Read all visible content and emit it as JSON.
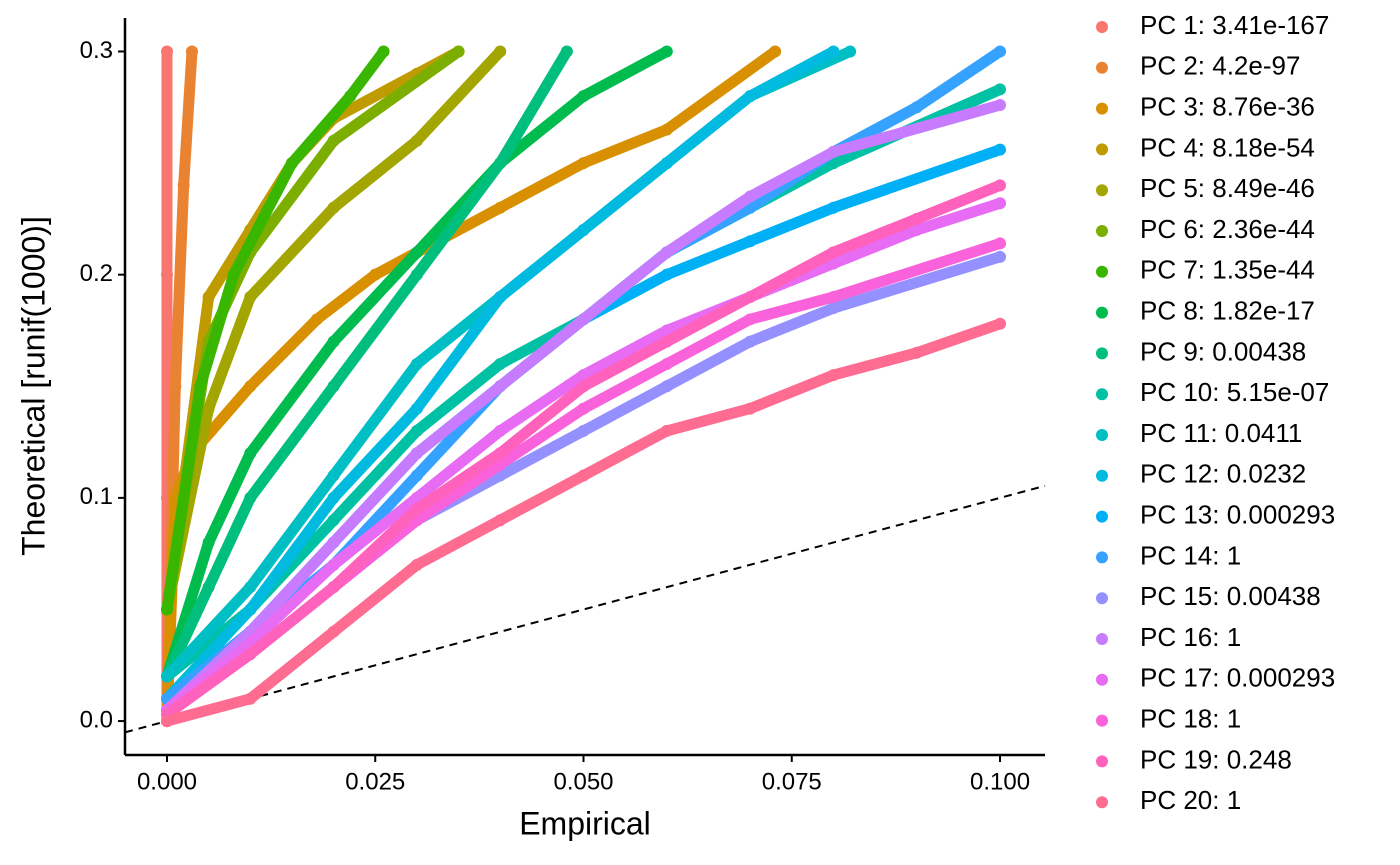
{
  "chart_data": {
    "type": "scatter",
    "xlabel": "Empirical",
    "ylabel": "Theoretical [runif(1000)]",
    "xlim": [
      -0.00504,
      0.1054
    ],
    "ylim": [
      -0.0152,
      0.315
    ],
    "xticks": [
      {
        "value": 0,
        "label": "0.000"
      },
      {
        "value": 0.025,
        "label": "0.025"
      },
      {
        "value": 0.05,
        "label": "0.050"
      },
      {
        "value": 0.075,
        "label": "0.075"
      },
      {
        "value": 0.1,
        "label": "0.100"
      }
    ],
    "yticks": [
      {
        "value": 0,
        "label": "0.0"
      },
      0.1,
      0.2,
      0.3
    ],
    "legend": "right",
    "series": [
      {
        "name": "PC 1: 3.41e-167",
        "color": "#F8766D",
        "x": [
          0,
          0,
          0,
          0
        ],
        "values": [
          0,
          0.1,
          0.2,
          0.3
        ]
      },
      {
        "name": "PC 2: 4.2e-97",
        "color": "#EA8331",
        "x": [
          0,
          0.001,
          0.002,
          0.003
        ],
        "values": [
          0,
          0.15,
          0.24,
          0.3
        ]
      },
      {
        "name": "PC 3: 8.76e-36",
        "color": "#D89000",
        "x": [
          0,
          0.001,
          0.003,
          0.01,
          0.018,
          0.025,
          0.04,
          0.05,
          0.06,
          0.073
        ],
        "values": [
          0,
          0.1,
          0.12,
          0.15,
          0.18,
          0.2,
          0.23,
          0.25,
          0.265,
          0.3
        ]
      },
      {
        "name": "PC 4: 8.18e-54",
        "color": "#C09B00",
        "x": [
          0,
          0.005,
          0.01,
          0.015,
          0.02,
          0.03,
          0.035
        ],
        "values": [
          0.05,
          0.19,
          0.22,
          0.25,
          0.27,
          0.29,
          0.3
        ]
      },
      {
        "name": "PC 5: 8.49e-46",
        "color": "#A3A500",
        "x": [
          0,
          0.005,
          0.01,
          0.02,
          0.03,
          0.04
        ],
        "values": [
          0.05,
          0.14,
          0.19,
          0.23,
          0.26,
          0.3
        ]
      },
      {
        "name": "PC 6: 2.36e-44",
        "color": "#7CAE00",
        "x": [
          0,
          0.005,
          0.01,
          0.02,
          0.035
        ],
        "values": [
          0.05,
          0.17,
          0.21,
          0.26,
          0.3
        ]
      },
      {
        "name": "PC 7: 1.35e-44",
        "color": "#39B600",
        "x": [
          0,
          0.004,
          0.008,
          0.015,
          0.022,
          0.026
        ],
        "values": [
          0.05,
          0.15,
          0.2,
          0.25,
          0.28,
          0.3
        ]
      },
      {
        "name": "PC 8: 1.82e-17",
        "color": "#00BB4E",
        "x": [
          0,
          0.005,
          0.01,
          0.02,
          0.03,
          0.04,
          0.05,
          0.06
        ],
        "values": [
          0.02,
          0.08,
          0.12,
          0.17,
          0.21,
          0.25,
          0.28,
          0.3
        ]
      },
      {
        "name": "PC 9: 0.00438",
        "color": "#00BF7D",
        "x": [
          0,
          0.005,
          0.01,
          0.02,
          0.03,
          0.04,
          0.048
        ],
        "values": [
          0.02,
          0.06,
          0.1,
          0.15,
          0.2,
          0.25,
          0.3
        ]
      },
      {
        "name": "PC 10: 5.15e-07",
        "color": "#00C1A3",
        "x": [
          0,
          0.01,
          0.02,
          0.03,
          0.04,
          0.05,
          0.06,
          0.07,
          0.08,
          0.1
        ],
        "values": [
          0.02,
          0.05,
          0.09,
          0.13,
          0.16,
          0.18,
          0.21,
          0.23,
          0.25,
          0.283
        ]
      },
      {
        "name": "PC 11: 0.0411",
        "color": "#00BFC4",
        "x": [
          0,
          0.01,
          0.02,
          0.03,
          0.04,
          0.05,
          0.06,
          0.07,
          0.082
        ],
        "values": [
          0.02,
          0.06,
          0.11,
          0.16,
          0.19,
          0.22,
          0.25,
          0.28,
          0.3
        ]
      },
      {
        "name": "PC 12: 0.0232",
        "color": "#00BAE0",
        "x": [
          0,
          0.01,
          0.02,
          0.03,
          0.04,
          0.05,
          0.06,
          0.07,
          0.08
        ],
        "values": [
          0.01,
          0.05,
          0.1,
          0.14,
          0.19,
          0.22,
          0.25,
          0.28,
          0.3
        ]
      },
      {
        "name": "PC 13: 0.000293",
        "color": "#00B0F6",
        "x": [
          0,
          0.01,
          0.02,
          0.03,
          0.04,
          0.05,
          0.06,
          0.07,
          0.08,
          0.1
        ],
        "values": [
          0.01,
          0.04,
          0.08,
          0.12,
          0.15,
          0.18,
          0.2,
          0.215,
          0.23,
          0.256
        ]
      },
      {
        "name": "PC 14: 1",
        "color": "#35A2FF",
        "x": [
          0,
          0.01,
          0.02,
          0.03,
          0.04,
          0.05,
          0.06,
          0.07,
          0.08,
          0.09,
          0.1
        ],
        "values": [
          0.01,
          0.04,
          0.07,
          0.11,
          0.15,
          0.18,
          0.21,
          0.23,
          0.255,
          0.275,
          0.3
        ]
      },
      {
        "name": "PC 15: 0.00438",
        "color": "#9590FF",
        "x": [
          0,
          0.01,
          0.02,
          0.03,
          0.04,
          0.05,
          0.06,
          0.07,
          0.08,
          0.1
        ],
        "values": [
          0.005,
          0.03,
          0.06,
          0.09,
          0.11,
          0.13,
          0.15,
          0.17,
          0.185,
          0.208
        ]
      },
      {
        "name": "PC 16: 1",
        "color": "#C77CFF",
        "x": [
          0,
          0.01,
          0.02,
          0.03,
          0.04,
          0.05,
          0.06,
          0.07,
          0.08,
          0.1
        ],
        "values": [
          0.005,
          0.04,
          0.08,
          0.12,
          0.15,
          0.18,
          0.21,
          0.235,
          0.255,
          0.276
        ]
      },
      {
        "name": "PC 17: 0.000293",
        "color": "#E76BF3",
        "x": [
          0,
          0.01,
          0.02,
          0.03,
          0.04,
          0.05,
          0.06,
          0.07,
          0.08,
          0.09,
          0.1
        ],
        "values": [
          0.005,
          0.035,
          0.07,
          0.1,
          0.13,
          0.155,
          0.175,
          0.19,
          0.205,
          0.22,
          0.232
        ]
      },
      {
        "name": "PC 18: 1",
        "color": "#FA62DB",
        "x": [
          0,
          0.01,
          0.02,
          0.03,
          0.04,
          0.05,
          0.06,
          0.07,
          0.08,
          0.1
        ],
        "values": [
          0.003,
          0.03,
          0.06,
          0.09,
          0.115,
          0.14,
          0.16,
          0.18,
          0.19,
          0.214
        ]
      },
      {
        "name": "PC 19: 0.248",
        "color": "#FF62BC",
        "x": [
          0,
          0.01,
          0.02,
          0.03,
          0.04,
          0.05,
          0.06,
          0.07,
          0.08,
          0.09,
          0.1
        ],
        "values": [
          0.003,
          0.03,
          0.06,
          0.095,
          0.12,
          0.15,
          0.17,
          0.19,
          0.21,
          0.225,
          0.24
        ]
      },
      {
        "name": "PC 20: 1",
        "color": "#FF6C91",
        "x": [
          0,
          0.01,
          0.02,
          0.03,
          0.04,
          0.05,
          0.06,
          0.07,
          0.08,
          0.09,
          0.1
        ],
        "values": [
          0,
          0.01,
          0.04,
          0.07,
          0.09,
          0.11,
          0.13,
          0.14,
          0.155,
          0.165,
          0.178
        ]
      }
    ]
  }
}
